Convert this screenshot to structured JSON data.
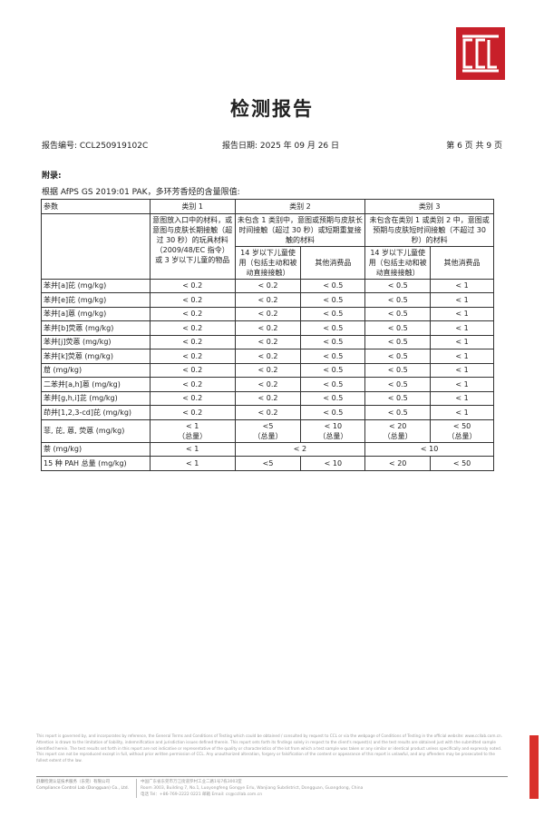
{
  "logo": {
    "text": "CCL",
    "color": "#c8202a"
  },
  "title": "检测报告",
  "meta": {
    "report_no": "报告编号: CCL250919102C",
    "report_date": "报告日期: 2025 年 09 月 26 日",
    "page": "第 6 页 共 9 页"
  },
  "appendix": "附录:",
  "basis": "根据 AfPS GS 2019:01 PAK，多环芳香烃的含量限值:",
  "table": {
    "h_param": "参数",
    "h_cat1": "类别 1",
    "h_cat2": "类别 2",
    "h_cat3": "类别 3",
    "cat1_desc": "意图放入口中的材料，或意图与皮肤长期接触（超过 30 秒）的玩具材料（2009/48/EC 指令）或 3 岁以下儿童的物品",
    "cat2_desc": "未包含 1 类别中，意图或预期与皮肤长时间接触（超过 30 秒）或短期重复接触的材料",
    "cat3_desc": "未包含在类别 1 或类别 2 中，意图或预期与皮肤短时间接触（不超过 30 秒）的材料",
    "cat2_a": "14 岁以下儿童使用（包括主动和被动直接接触）",
    "cat2_b": "其他消费品",
    "cat3_a": "14 岁以下儿童使用（包括主动和被动直接接触）",
    "cat3_b": "其他消费品",
    "rows": [
      {
        "name": "苯并[a]芘 (mg/kg)",
        "v": [
          "< 0.2",
          "< 0.2",
          "< 0.5",
          "< 0.5",
          "< 1"
        ]
      },
      {
        "name": "苯并[e]芘 (mg/kg)",
        "v": [
          "< 0.2",
          "< 0.2",
          "< 0.5",
          "< 0.5",
          "< 1"
        ]
      },
      {
        "name": "苯并[a]蒽 (mg/kg)",
        "v": [
          "< 0.2",
          "< 0.2",
          "< 0.5",
          "< 0.5",
          "< 1"
        ]
      },
      {
        "name": "苯并[b]荧蒽 (mg/kg)",
        "v": [
          "< 0.2",
          "< 0.2",
          "< 0.5",
          "< 0.5",
          "< 1"
        ]
      },
      {
        "name": "苯并[j]荧蒽 (mg/kg)",
        "v": [
          "< 0.2",
          "< 0.2",
          "< 0.5",
          "< 0.5",
          "< 1"
        ]
      },
      {
        "name": "苯并[k]荧蒽 (mg/kg)",
        "v": [
          "< 0.2",
          "< 0.2",
          "< 0.5",
          "< 0.5",
          "< 1"
        ]
      },
      {
        "name": "䓛 (mg/kg)",
        "v": [
          "< 0.2",
          "< 0.2",
          "< 0.5",
          "< 0.5",
          "< 1"
        ]
      },
      {
        "name": "二苯并[a,h]蒽 (mg/kg)",
        "v": [
          "< 0.2",
          "< 0.2",
          "< 0.5",
          "< 0.5",
          "< 1"
        ]
      },
      {
        "name": "苯并[g,h,i]苝 (mg/kg)",
        "v": [
          "< 0.2",
          "< 0.2",
          "< 0.5",
          "< 0.5",
          "< 1"
        ]
      },
      {
        "name": "茚并[1,2,3-cd]芘 (mg/kg)",
        "v": [
          "< 0.2",
          "< 0.2",
          "< 0.5",
          "< 0.5",
          "< 1"
        ]
      },
      {
        "name": "菲, 芘, 蒽, 荧蒽 (mg/kg)",
        "v": [
          "< 1\n（总量）",
          "<5\n（总量）",
          "< 10\n（总量）",
          "< 20\n（总量）",
          "< 50\n（总量）"
        ]
      }
    ],
    "naph": {
      "name": "萘 (mg/kg)",
      "v1": "< 1",
      "v2": "< 2",
      "v3": "< 10"
    },
    "total": {
      "name": "15 种 PAH 总量 (mg/kg)",
      "v": [
        "< 1",
        "<5",
        "< 10",
        "< 20",
        "< 50"
      ]
    }
  },
  "footer": {
    "disclaimer": "This report is governed by, and incorporates by reference, the General Terms and Conditions of Testing which could be obtained / consulted by request to CCL or via the webpage of Conditions of Testing in the official website: www.ccllab.com.cn. Attention is drawn to the limitation of liability, indemnification and jurisdiction issues defined therein. This report sets forth its findings solely in respect to the client's request(s) and the test results are obtained just with the submitted sample identified herein. The test results set forth in this report are not indicative or representative of the quality or characteristics of the lot from which a test sample was taken or any similar or identical product unless specifically and expressly noted. This report can not be reproduced except in full, without prior written permission of CCL. Any unauthorized alteration, forgery or falsification of the content or appearance of this report is unlawful, and any offenders may be prosecuted to the fullest extent of the law.",
    "company_cn": "舒康检测认证技术服务（东莞）有限公司",
    "company_en": "Compliance Control Lab (Dongguan) Co., Ltd.",
    "addr_cn": "中国广东省东莞市万江街道罗村工业二路1号7栋3003室",
    "addr_en": "Room 3003, Building 7, No.1, Luoyongfeng Gongye Erlu, Wanjiang Subdistrict, Dongguan, Guangdong, China",
    "contact": "电话 Tel：+86-769-2222 0221    邮箱 Email: cs@ccllab.com.cn"
  }
}
